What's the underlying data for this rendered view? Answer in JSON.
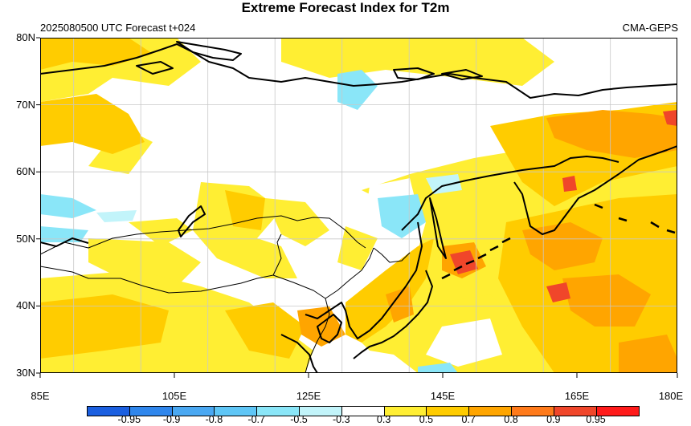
{
  "title": "Extreme Forecast Index for T2m",
  "subtitle_left": "2025080500 UTC Forecast t+024",
  "subtitle_right": "CMA-GEPS",
  "map": {
    "lon_range": [
      85,
      180
    ],
    "lat_range": [
      30,
      80
    ],
    "lat_labels": [
      "80N",
      "70N",
      "60N",
      "50N",
      "40N",
      "30N"
    ],
    "lon_labels": [
      "85E",
      "105E",
      "125E",
      "145E",
      "165E",
      "180E"
    ],
    "lat_values": [
      80,
      70,
      60,
      50,
      40,
      30
    ],
    "lon_values": [
      85,
      105,
      125,
      145,
      165,
      180
    ]
  },
  "colorbar": {
    "labels": [
      "-0.95",
      "-0.9",
      "-0.8",
      "-0.7",
      "-0.5",
      "-0.3",
      "0.3",
      "0.5",
      "0.7",
      "0.8",
      "0.9",
      "0.95"
    ],
    "colors": [
      "#1b5fe0",
      "#2f86ec",
      "#4aa8f2",
      "#5fc6f6",
      "#8ae6f8",
      "#c2f4fa",
      "#ffffff",
      "#ffee33",
      "#ffcc00",
      "#ffa500",
      "#ff7a1a",
      "#f0462a",
      "#ff1a1a"
    ]
  }
}
